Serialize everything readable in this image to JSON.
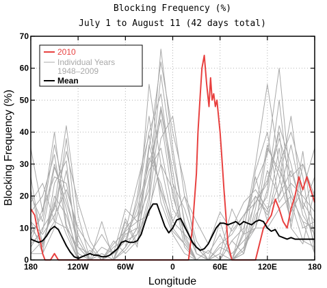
{
  "chart_data": {
    "type": "line",
    "title": "Blocking Frequency (%)",
    "subtitle": "July 1 to August 11 (42 days total)",
    "xlabel": "Longitude",
    "ylabel": "Blocking Frequency (%)",
    "xlim": [
      0,
      360
    ],
    "ylim": [
      0,
      70
    ],
    "x_tick_positions": [
      0,
      60,
      120,
      180,
      240,
      300,
      360
    ],
    "x_tick_labels": [
      "180",
      "120W",
      "60W",
      "0",
      "60E",
      "120E",
      "180"
    ],
    "y_ticks": [
      0,
      10,
      20,
      30,
      40,
      50,
      60,
      70
    ],
    "grid": "dotted",
    "legend_position": "top-left",
    "legend": [
      {
        "label": "2010",
        "color": "#e8403f"
      },
      {
        "label": "Individual Years",
        "color": "#a8a8a8"
      },
      {
        "label": "1948–2009",
        "color": "#a8a8a8"
      },
      {
        "label": "Mean",
        "color": "#000000"
      }
    ],
    "colors": {
      "year_2010": "#e8403f",
      "individual": "#a8a8a8",
      "mean": "#000000"
    },
    "series": [
      {
        "name": "2010",
        "x": [
          0,
          5,
          8,
          12,
          15,
          18,
          25,
          30,
          35,
          40,
          60,
          90,
          120,
          150,
          180,
          200,
          205,
          210,
          212,
          215,
          217,
          220,
          223,
          226,
          228,
          230,
          232,
          234,
          236,
          238,
          240,
          242,
          245,
          248,
          250,
          255,
          260,
          265,
          270,
          275,
          280,
          285,
          290,
          295,
          300,
          305,
          310,
          315,
          320,
          325,
          330,
          335,
          340,
          345,
          350,
          355,
          360
        ],
        "y": [
          16,
          14,
          10,
          6,
          2,
          0,
          0,
          2,
          0,
          0,
          0,
          0,
          0,
          0,
          0,
          0,
          10,
          27,
          40,
          52,
          60,
          64,
          55,
          48,
          57,
          50,
          52,
          48,
          50,
          45,
          40,
          33,
          22,
          12,
          5,
          0,
          0,
          0,
          0,
          0,
          0,
          0,
          5,
          10,
          12,
          14,
          19,
          16,
          12,
          10,
          16,
          20,
          26,
          22,
          26,
          22,
          18
        ]
      },
      {
        "name": "Mean",
        "x": [
          0,
          5,
          10,
          15,
          20,
          25,
          30,
          35,
          40,
          45,
          50,
          55,
          60,
          65,
          70,
          75,
          80,
          85,
          90,
          95,
          100,
          105,
          110,
          115,
          120,
          125,
          130,
          135,
          140,
          145,
          150,
          155,
          160,
          165,
          170,
          175,
          180,
          185,
          190,
          195,
          200,
          205,
          210,
          215,
          220,
          225,
          230,
          235,
          240,
          245,
          250,
          255,
          260,
          265,
          270,
          275,
          280,
          285,
          290,
          295,
          300,
          305,
          310,
          315,
          320,
          325,
          330,
          335,
          340,
          345,
          350,
          355,
          360
        ],
        "y": [
          6.5,
          6,
          5.5,
          6,
          7.5,
          9.5,
          10.5,
          9.5,
          7,
          4.5,
          2.5,
          1,
          0.5,
          1,
          1.5,
          2,
          1.5,
          1.5,
          1,
          1,
          1.5,
          2.5,
          3.5,
          5.5,
          6,
          5.5,
          5.5,
          6,
          8,
          12,
          15.5,
          17.5,
          17.5,
          14,
          10.5,
          8.5,
          10,
          12.5,
          13,
          10.5,
          8,
          5.5,
          4,
          3,
          3.5,
          5,
          7.5,
          10,
          11.5,
          11.5,
          11,
          11.5,
          12,
          11,
          12,
          11.5,
          11,
          12,
          12.5,
          12,
          10,
          9,
          9.5,
          7.5,
          7,
          6.5,
          7,
          6.5,
          6.5,
          6.5,
          6.5,
          6.5,
          6.5
        ]
      },
      {
        "name": "Individual Years",
        "x": [
          0,
          15,
          30,
          45,
          60,
          75,
          90,
          105,
          120,
          135,
          150,
          165,
          180,
          195,
          210,
          225,
          240,
          255,
          270,
          285,
          300,
          315,
          330,
          345,
          360
        ],
        "y": [
          10,
          5,
          18,
          8,
          0,
          0,
          0,
          0,
          4,
          10,
          32,
          24,
          10,
          5,
          0,
          0,
          0,
          0,
          4,
          10,
          35,
          28,
          20,
          12,
          10
        ]
      },
      {
        "name": "Individual Years",
        "x": [
          0,
          15,
          30,
          45,
          60,
          75,
          90,
          105,
          120,
          135,
          150,
          165,
          180,
          195,
          210,
          225,
          240,
          255,
          270,
          285,
          300,
          315,
          330,
          345,
          360
        ],
        "y": [
          5,
          9,
          29,
          18,
          6,
          0,
          0,
          5,
          9,
          24,
          39,
          21,
          9,
          5,
          0,
          0,
          5,
          8,
          14,
          20,
          14,
          24,
          45,
          17,
          5
        ]
      },
      {
        "name": "Individual Years",
        "x": [
          0,
          15,
          30,
          45,
          60,
          75,
          90,
          105,
          120,
          135,
          150,
          165,
          180,
          195,
          210,
          225,
          240,
          255,
          270,
          285,
          300,
          315,
          330,
          345,
          360
        ],
        "y": [
          18,
          24,
          12,
          38,
          6,
          0,
          2,
          0,
          4,
          10,
          55,
          30,
          12,
          20,
          12,
          5,
          15,
          9,
          14,
          18,
          25,
          40,
          10,
          30,
          18
        ]
      },
      {
        "name": "Individual Years",
        "x": [
          0,
          15,
          30,
          45,
          60,
          75,
          90,
          105,
          120,
          135,
          150,
          165,
          180,
          195,
          210,
          225,
          240,
          255,
          270,
          285,
          300,
          315,
          330,
          345,
          360
        ],
        "y": [
          35,
          15,
          40,
          11,
          2,
          0,
          0,
          0,
          9,
          12,
          22,
          66,
          35,
          11,
          2,
          0,
          0,
          0,
          9,
          30,
          55,
          30,
          15,
          22,
          35
        ]
      },
      {
        "name": "Individual Years",
        "x": [
          0,
          15,
          30,
          45,
          60,
          75,
          90,
          105,
          120,
          135,
          150,
          165,
          180,
          195,
          210,
          225,
          240,
          255,
          270,
          285,
          300,
          315,
          330,
          345,
          360
        ],
        "y": [
          12,
          2,
          24,
          31,
          0,
          3,
          0,
          0,
          13,
          5,
          18,
          47,
          24,
          7,
          0,
          3,
          0,
          0,
          13,
          24,
          33,
          60,
          22,
          10,
          12
        ]
      },
      {
        "name": "Individual Years",
        "x": [
          0,
          15,
          30,
          45,
          60,
          75,
          90,
          105,
          120,
          135,
          150,
          165,
          180,
          195,
          210,
          225,
          240,
          255,
          270,
          285,
          300,
          315,
          330,
          345,
          360
        ],
        "y": [
          22,
          5,
          17,
          42,
          14,
          0,
          0,
          0,
          12,
          4,
          35,
          62,
          40,
          24,
          2,
          0,
          0,
          0,
          2,
          20,
          15,
          35,
          10,
          5,
          22
        ]
      },
      {
        "name": "Individual Years",
        "x": [
          0,
          15,
          30,
          45,
          60,
          75,
          90,
          105,
          120,
          135,
          150,
          165,
          180,
          195,
          210,
          225,
          240,
          255,
          270,
          285,
          300,
          315,
          330,
          345,
          360
        ],
        "y": [
          8,
          14,
          36,
          20,
          4,
          2,
          8,
          2,
          6,
          16,
          30,
          44,
          20,
          8,
          4,
          2,
          8,
          0,
          2,
          14,
          20,
          42,
          30,
          14,
          8
        ]
      },
      {
        "name": "Individual Years",
        "x": [
          0,
          15,
          30,
          45,
          60,
          75,
          90,
          105,
          120,
          135,
          150,
          165,
          180,
          195,
          210,
          225,
          240,
          255,
          270,
          285,
          300,
          315,
          330,
          345,
          360
        ],
        "y": [
          2,
          2,
          10,
          28,
          4,
          0,
          0,
          4,
          6,
          18,
          40,
          52,
          24,
          16,
          4,
          0,
          0,
          6,
          10,
          26,
          12,
          30,
          40,
          26,
          2
        ]
      },
      {
        "name": "Individual Years",
        "x": [
          0,
          15,
          30,
          45,
          60,
          75,
          90,
          105,
          120,
          135,
          150,
          165,
          180,
          195,
          210,
          225,
          240,
          255,
          270,
          285,
          300,
          315,
          330,
          345,
          360
        ],
        "y": [
          15,
          20,
          33,
          10,
          0,
          0,
          12,
          0,
          3,
          8,
          25,
          48,
          28,
          6,
          0,
          0,
          12,
          0,
          3,
          28,
          40,
          18,
          24,
          20,
          15
        ]
      },
      {
        "name": "Individual Years",
        "x": [
          0,
          15,
          30,
          45,
          60,
          75,
          90,
          105,
          120,
          135,
          150,
          165,
          180,
          195,
          210,
          225,
          240,
          255,
          270,
          285,
          300,
          315,
          330,
          345,
          360
        ],
        "y": [
          4,
          10,
          16,
          34,
          18,
          6,
          0,
          2,
          16,
          12,
          14,
          38,
          45,
          20,
          6,
          0,
          2,
          16,
          8,
          10,
          22,
          50,
          18,
          6,
          4
        ]
      },
      {
        "name": "Individual Years",
        "x": [
          0,
          15,
          30,
          45,
          60,
          75,
          90,
          105,
          120,
          135,
          150,
          165,
          180,
          195,
          210,
          225,
          240,
          255,
          270,
          285,
          300,
          315,
          330,
          345,
          360
        ],
        "y": [
          26,
          4,
          20,
          14,
          2,
          0,
          2,
          0,
          4,
          20,
          45,
          18,
          8,
          2,
          0,
          0,
          2,
          0,
          4,
          12,
          28,
          20,
          28,
          16,
          26
        ]
      },
      {
        "name": "Individual Years",
        "x": [
          0,
          15,
          30,
          45,
          60,
          75,
          90,
          105,
          120,
          135,
          150,
          165,
          180,
          195,
          210,
          225,
          240,
          255,
          270,
          285,
          300,
          315,
          330,
          345,
          360
        ],
        "y": [
          6,
          16,
          26,
          24,
          8,
          0,
          0,
          6,
          2,
          6,
          20,
          58,
          32,
          12,
          2,
          0,
          0,
          6,
          2,
          16,
          36,
          26,
          12,
          34,
          6
        ]
      },
      {
        "name": "Individual Years",
        "x": [
          0,
          15,
          30,
          45,
          60,
          75,
          90,
          105,
          120,
          135,
          150,
          165,
          180,
          195,
          210,
          225,
          240,
          255,
          270,
          285,
          300,
          315,
          330,
          345,
          360
        ],
        "y": [
          12,
          8,
          14,
          22,
          10,
          4,
          0,
          0,
          10,
          14,
          28,
          35,
          16,
          10,
          4,
          0,
          0,
          10,
          18,
          22,
          16,
          20,
          36,
          18,
          12
        ]
      },
      {
        "name": "Individual Years",
        "x": [
          0,
          15,
          30,
          45,
          60,
          75,
          90,
          105,
          120,
          135,
          150,
          165,
          180,
          195,
          210,
          225,
          240,
          255,
          270,
          285,
          300,
          315,
          330,
          345,
          360
        ],
        "y": [
          20,
          12,
          30,
          16,
          0,
          0,
          0,
          0,
          8,
          10,
          36,
          22,
          12,
          8,
          0,
          0,
          0,
          0,
          8,
          18,
          24,
          38,
          26,
          30,
          20
        ]
      },
      {
        "name": "Individual Years",
        "x": [
          0,
          15,
          30,
          45,
          60,
          75,
          90,
          105,
          120,
          135,
          150,
          165,
          180,
          195,
          210,
          225,
          240,
          255,
          270,
          285,
          300,
          315,
          330,
          345,
          360
        ],
        "y": [
          2,
          6,
          12,
          10,
          4,
          0,
          4,
          2,
          6,
          8,
          16,
          30,
          22,
          4,
          0,
          0,
          4,
          2,
          6,
          10,
          10,
          16,
          20,
          12,
          2
        ]
      }
    ]
  }
}
